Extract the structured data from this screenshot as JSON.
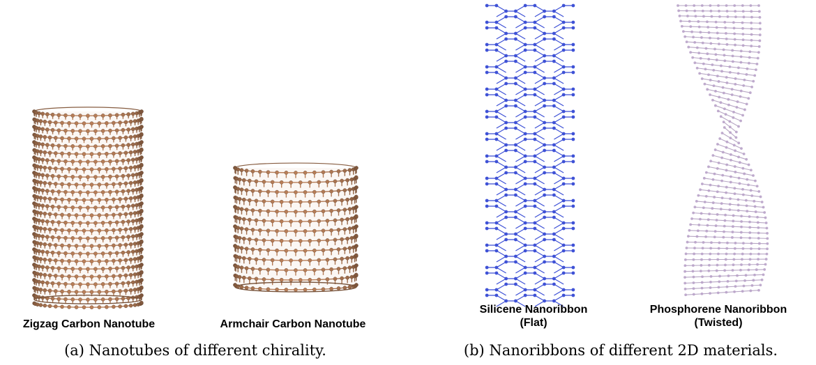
{
  "panels": {
    "a": {
      "caption": "(a) Nanotubes of different chirality.",
      "items": [
        {
          "label": "Zigzag Carbon Nanotube",
          "color": "#a87350"
        },
        {
          "label": "Armchair Carbon Nanotube",
          "color": "#a87350"
        }
      ]
    },
    "b": {
      "caption": "(b) Nanoribbons of different 2D materials.",
      "items": [
        {
          "label_line1": "Silicene Nanoribbon",
          "label_line2": "(Flat)",
          "color": "#3f52d6"
        },
        {
          "label_line1": "Phosphorene Nanoribbon",
          "label_line2": "(Twisted)",
          "color": "#b9a3c9"
        }
      ]
    }
  }
}
